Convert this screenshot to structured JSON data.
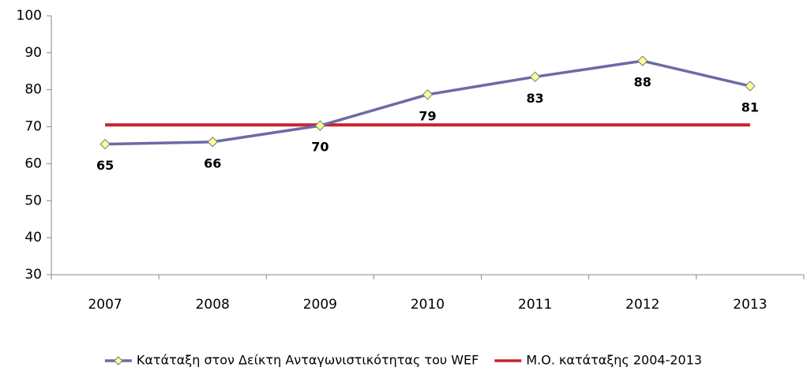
{
  "chart_data": {
    "type": "line",
    "categories": [
      "2007",
      "2008",
      "2009",
      "2010",
      "2011",
      "2012",
      "2013"
    ],
    "series": [
      {
        "name": "Κατάταξη στον Δείκτη Ανταγωνιστικότητας του WEF",
        "color": "#6b6ba6",
        "marker": "diamond",
        "marker_color": "#ffff99",
        "values": [
          65.3,
          65.9,
          70.3,
          78.7,
          83.5,
          87.8,
          81.0
        ],
        "value_labels": [
          "65",
          "66",
          "70",
          "79",
          "83",
          "88",
          "81"
        ]
      },
      {
        "name": "Μ.Ο. κατάταξης 2004-2013",
        "color": "#c8232c",
        "values": [
          70.5,
          70.5,
          70.5,
          70.5,
          70.5,
          70.5,
          70.5
        ]
      }
    ],
    "ylim": [
      30,
      100
    ],
    "yticks": [
      30,
      40,
      50,
      60,
      70,
      80,
      90,
      100
    ],
    "grid": false,
    "legend": "bottom"
  }
}
